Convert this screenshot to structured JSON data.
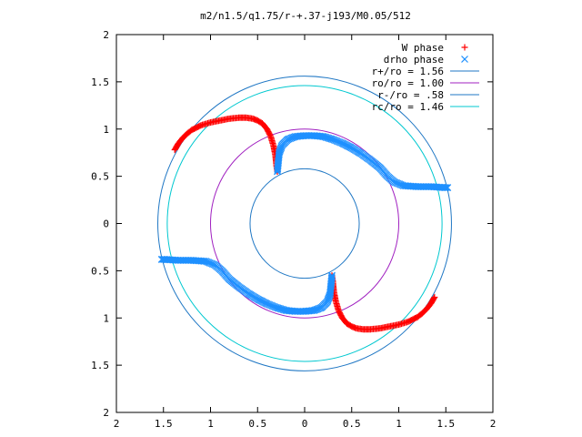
{
  "chart_data": {
    "type": "scatter",
    "title": "m2/n1.5/q1.75/r-+.37-j193/M0.05/512",
    "xlabel": "",
    "ylabel": "",
    "xlim": [
      -2,
      2
    ],
    "ylim": [
      -2,
      2
    ],
    "grid": false,
    "legend_position": "top-right",
    "x_ticks": [
      -2,
      -1.5,
      -1,
      -0.5,
      0,
      0.5,
      1,
      1.5,
      2
    ],
    "y_ticks": [
      -2,
      -1.5,
      -1,
      -0.5,
      0,
      0.5,
      1,
      1.5,
      2
    ],
    "x_tick_labels": [
      "2",
      "1.5",
      "1",
      "0.5",
      "0",
      "0.5",
      "1",
      "1.5",
      "2"
    ],
    "y_tick_labels": [
      "2",
      "1.5",
      "1",
      "0.5",
      "0",
      "0.5",
      "1",
      "1.5",
      "2"
    ],
    "circles": [
      {
        "name": "r+/ro = 1.56",
        "radius": 1.56,
        "color": "#1f77c4"
      },
      {
        "name": "ro/ro = 1.00",
        "radius": 1.0,
        "color": "#a020c0"
      },
      {
        "name": "r-/ro = .58",
        "radius": 0.58,
        "color": "#1f77c4"
      },
      {
        "name": "rc/ro = 1.46",
        "radius": 1.46,
        "color": "#00c8d0"
      }
    ],
    "series": [
      {
        "name": "W phase",
        "marker": "+",
        "color": "#ff0000",
        "points": [
          [
            -1.38,
            0.78
          ],
          [
            -1.34,
            0.85
          ],
          [
            -1.3,
            0.9
          ],
          [
            -1.25,
            0.95
          ],
          [
            -1.2,
            0.99
          ],
          [
            -1.1,
            1.04
          ],
          [
            -1.0,
            1.07
          ],
          [
            -0.9,
            1.09
          ],
          [
            -0.8,
            1.11
          ],
          [
            -0.7,
            1.12
          ],
          [
            -0.62,
            1.12
          ],
          [
            -0.55,
            1.11
          ],
          [
            -0.5,
            1.09
          ],
          [
            -0.45,
            1.06
          ],
          [
            -0.4,
            1.0
          ],
          [
            -0.36,
            0.92
          ],
          [
            -0.33,
            0.82
          ],
          [
            -0.31,
            0.72
          ],
          [
            -0.3,
            0.62
          ],
          [
            -0.29,
            0.55
          ],
          [
            1.38,
            -0.78
          ],
          [
            1.34,
            -0.85
          ],
          [
            1.3,
            -0.9
          ],
          [
            1.25,
            -0.95
          ],
          [
            1.2,
            -0.99
          ],
          [
            1.1,
            -1.04
          ],
          [
            1.0,
            -1.07
          ],
          [
            0.9,
            -1.09
          ],
          [
            0.8,
            -1.11
          ],
          [
            0.7,
            -1.12
          ],
          [
            0.62,
            -1.12
          ],
          [
            0.55,
            -1.11
          ],
          [
            0.5,
            -1.09
          ],
          [
            0.45,
            -1.06
          ],
          [
            0.4,
            -1.0
          ],
          [
            0.36,
            -0.92
          ],
          [
            0.33,
            -0.82
          ],
          [
            0.31,
            -0.72
          ],
          [
            0.3,
            -0.62
          ],
          [
            0.29,
            -0.55
          ]
        ]
      },
      {
        "name": "drho phase",
        "marker": "x",
        "color": "#1e90ff",
        "points": [
          [
            -0.29,
            0.55
          ],
          [
            -0.28,
            0.65
          ],
          [
            -0.27,
            0.75
          ],
          [
            -0.24,
            0.83
          ],
          [
            -0.18,
            0.89
          ],
          [
            -0.1,
            0.92
          ],
          [
            0.0,
            0.93
          ],
          [
            0.1,
            0.93
          ],
          [
            0.2,
            0.92
          ],
          [
            0.3,
            0.89
          ],
          [
            0.4,
            0.85
          ],
          [
            0.5,
            0.8
          ],
          [
            0.6,
            0.74
          ],
          [
            0.7,
            0.67
          ],
          [
            0.8,
            0.59
          ],
          [
            0.88,
            0.5
          ],
          [
            0.95,
            0.44
          ],
          [
            1.05,
            0.4
          ],
          [
            1.2,
            0.39
          ],
          [
            1.35,
            0.39
          ],
          [
            1.48,
            0.38
          ],
          [
            1.52,
            0.38
          ],
          [
            0.29,
            -0.55
          ],
          [
            0.28,
            -0.65
          ],
          [
            0.27,
            -0.75
          ],
          [
            0.24,
            -0.83
          ],
          [
            0.18,
            -0.89
          ],
          [
            0.1,
            -0.92
          ],
          [
            0.0,
            -0.93
          ],
          [
            -0.1,
            -0.93
          ],
          [
            -0.2,
            -0.92
          ],
          [
            -0.3,
            -0.89
          ],
          [
            -0.4,
            -0.85
          ],
          [
            -0.5,
            -0.8
          ],
          [
            -0.6,
            -0.74
          ],
          [
            -0.7,
            -0.67
          ],
          [
            -0.8,
            -0.59
          ],
          [
            -0.88,
            -0.5
          ],
          [
            -0.95,
            -0.44
          ],
          [
            -1.05,
            -0.4
          ],
          [
            -1.2,
            -0.39
          ],
          [
            -1.35,
            -0.39
          ],
          [
            -1.48,
            -0.38
          ],
          [
            -1.52,
            -0.38
          ]
        ]
      }
    ]
  }
}
